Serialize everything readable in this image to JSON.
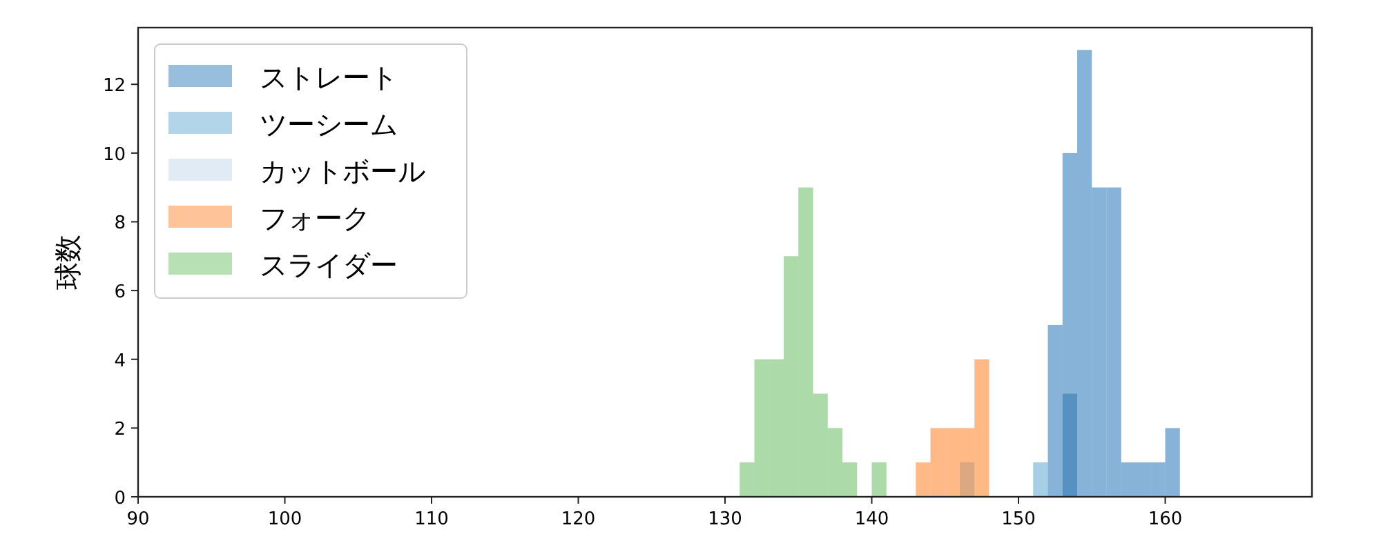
{
  "chart_data": {
    "type": "histogram",
    "ylabel": "球数",
    "xlim": [
      90,
      170
    ],
    "ylim": [
      0,
      13.65
    ],
    "xticks": [
      90,
      100,
      110,
      120,
      130,
      140,
      150,
      160
    ],
    "yticks": [
      0,
      2,
      4,
      6,
      8,
      10,
      12
    ],
    "grid": false,
    "legend": "top left",
    "bins": [
      131,
      132,
      133,
      134,
      135,
      136,
      137,
      138,
      139,
      140,
      141,
      142,
      143,
      144,
      145,
      146,
      147,
      148,
      149,
      150,
      151,
      152,
      153,
      154,
      155,
      156,
      157,
      158,
      159,
      160,
      161
    ],
    "series": [
      {
        "name": "ストレート",
        "color": "#86b3d7",
        "values": [
          0,
          0,
          0,
          0,
          0,
          0,
          0,
          0,
          0,
          0,
          0,
          0,
          0,
          0,
          0,
          0,
          0,
          0,
          0,
          0,
          0,
          5,
          10,
          13,
          9,
          9,
          1,
          1,
          1,
          2
        ]
      },
      {
        "name": "ツーシーム",
        "color": "#a6cee6",
        "values": [
          0,
          0,
          0,
          0,
          0,
          0,
          0,
          0,
          0,
          0,
          0,
          0,
          0,
          0,
          0,
          0,
          0,
          0,
          0,
          0,
          1,
          0,
          3,
          0,
          0,
          0,
          0,
          0,
          0,
          0
        ]
      },
      {
        "name": "カットボール",
        "color": "#dbe8f3",
        "values": [
          0,
          0,
          0,
          0,
          0,
          0,
          0,
          0,
          0,
          0,
          0,
          0,
          0,
          0,
          0,
          1,
          0,
          0,
          0,
          0,
          0,
          0,
          0,
          0,
          0,
          0,
          0,
          0,
          0,
          0
        ]
      },
      {
        "name": "フォーク",
        "color": "#ffb987",
        "values": [
          0,
          0,
          0,
          0,
          0,
          0,
          0,
          0,
          0,
          0,
          0,
          0,
          1,
          2,
          2,
          2,
          4,
          0,
          0,
          0,
          0,
          0,
          0,
          0,
          0,
          0,
          0,
          0,
          0,
          0
        ]
      },
      {
        "name": "スライダー",
        "color": "#acdaa8",
        "values": [
          1,
          4,
          4,
          7,
          9,
          3,
          2,
          1,
          0,
          1,
          0,
          0,
          0,
          0,
          0,
          0,
          0,
          0,
          0,
          0,
          0,
          0,
          0,
          0,
          0,
          0,
          0,
          0,
          0,
          0
        ]
      }
    ]
  }
}
